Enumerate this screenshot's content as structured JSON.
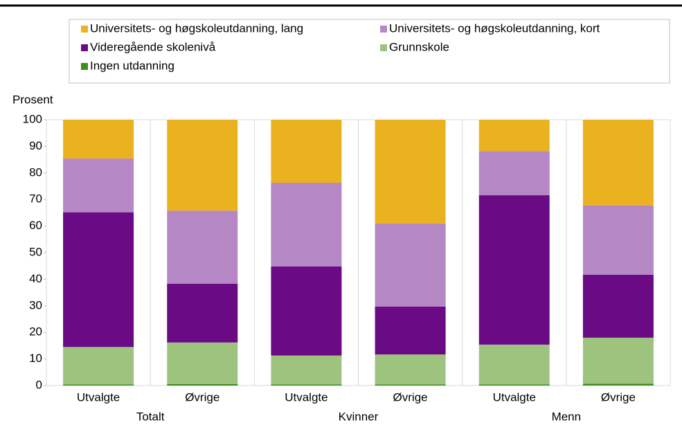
{
  "chart_data": {
    "type": "stacked_bar",
    "y_label": "Prosent",
    "categories": [
      "Utvalgte",
      "Øvrige",
      "Utvalgte",
      "Øvrige",
      "Utvalgte",
      "Øvrige"
    ],
    "groups": [
      "Totalt",
      "Kvinner",
      "Menn"
    ],
    "series": [
      {
        "name": "Ingen utdanning",
        "color": "#3e8e1b",
        "values": [
          0.4,
          0.6,
          0.4,
          0.4,
          0.4,
          0.7
        ]
      },
      {
        "name": "Grunnskole",
        "color": "#9dc37f",
        "values": [
          14.1,
          15.6,
          10.9,
          11.3,
          15.0,
          17.3
        ]
      },
      {
        "name": "Videregående skolenivå",
        "color": "#6a0a84",
        "values": [
          50.7,
          22.1,
          33.5,
          18.0,
          56.2,
          23.7
        ]
      },
      {
        "name": "Universitets- og høgskoleutdanning, kort",
        "color": "#b587c5",
        "values": [
          20.2,
          27.5,
          31.5,
          31.3,
          16.6,
          26.1
        ]
      },
      {
        "name": "Universitets- og høgskoleutdanning, lang",
        "color": "#ebb220",
        "values": [
          14.6,
          34.2,
          23.7,
          39.0,
          11.8,
          32.2
        ]
      }
    ],
    "ylim": [
      0,
      100
    ],
    "yticks": [
      0,
      10,
      20,
      30,
      40,
      50,
      60,
      70,
      80,
      90,
      100
    ]
  }
}
